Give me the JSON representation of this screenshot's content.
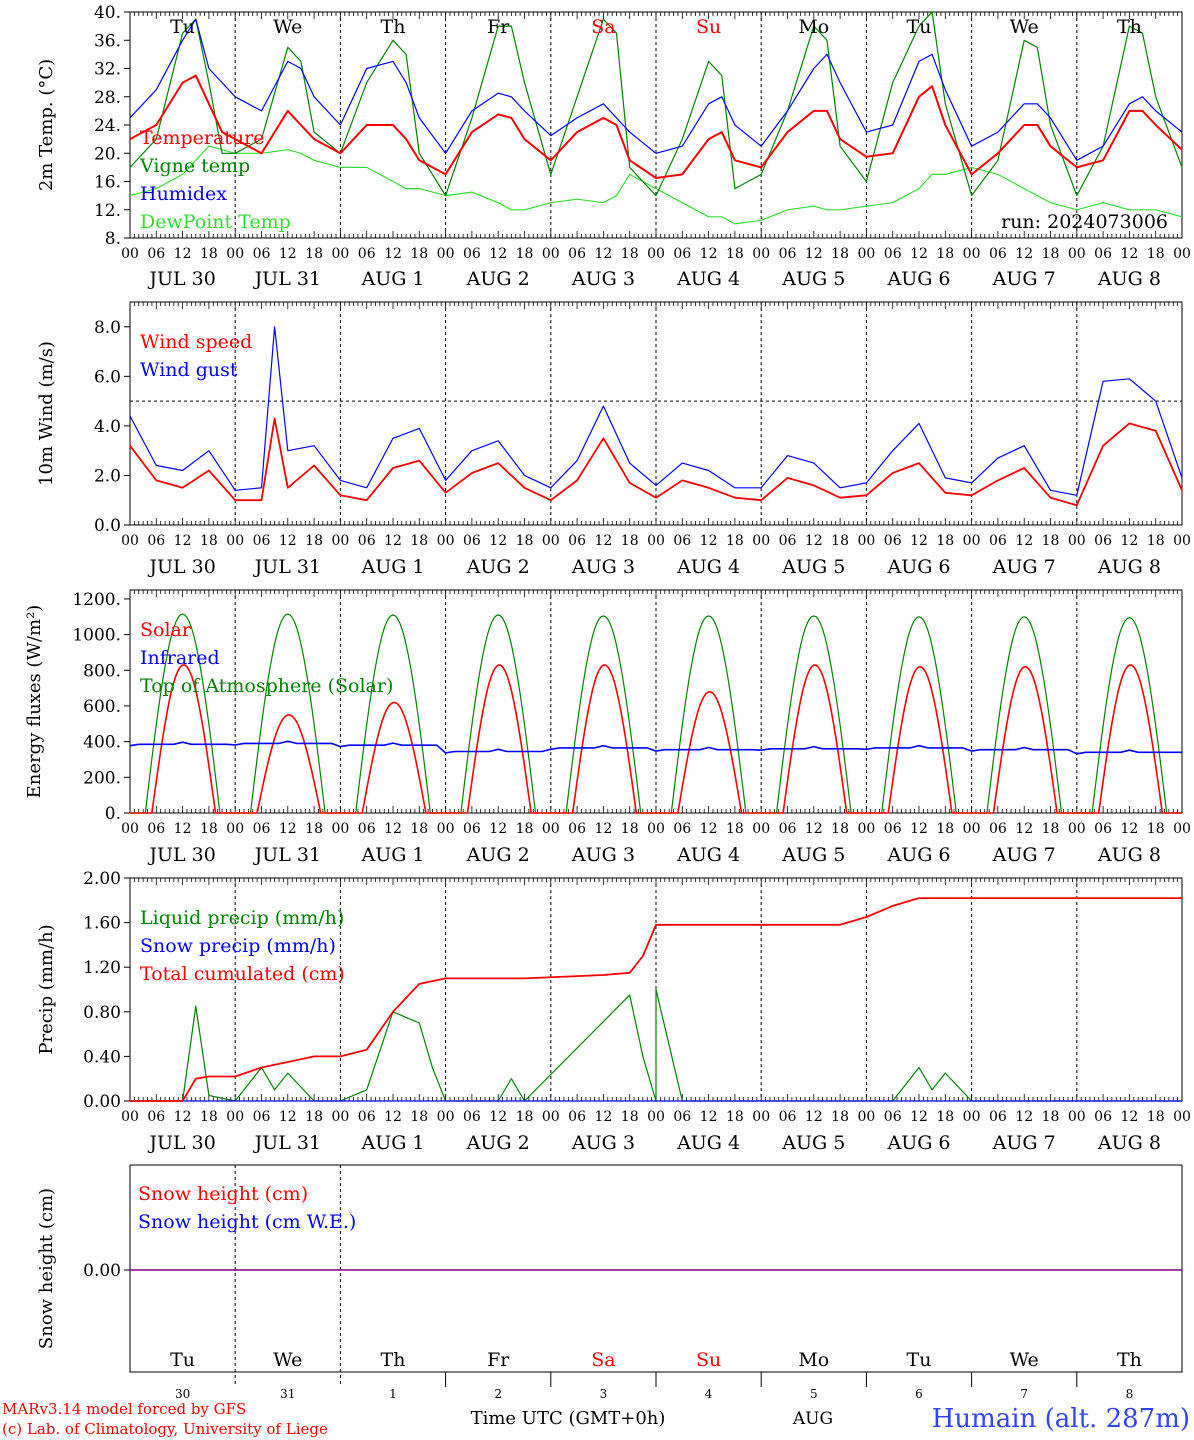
{
  "run_label": "run: 2024073006",
  "footer": {
    "model": "MARv3.14 model forced by GFS",
    "lab": "(c) Lab. of Climatology, University of Liege",
    "time_label": "Time UTC (GMT+0h)",
    "month_label": "AUG",
    "station": "Humain (alt. 287m)"
  },
  "days": {
    "dates": [
      "JUL 30",
      "JUL 31",
      "AUG  1",
      "AUG  2",
      "AUG  3",
      "AUG  4",
      "AUG  5",
      "AUG  6",
      "AUG  7",
      "AUG  8"
    ],
    "weekdays": [
      "Tu",
      "We",
      "Th",
      "Fr",
      "Sa",
      "Su",
      "Mo",
      "Tu",
      "We",
      "Th"
    ],
    "weekday_colors": [
      "#000000",
      "#000000",
      "#000000",
      "#000000",
      "#ff0000",
      "#ff0000",
      "#000000",
      "#000000",
      "#000000",
      "#000000"
    ],
    "day_numbers": [
      "30",
      "31",
      "1",
      "2",
      "3",
      "4",
      "5",
      "6",
      "7",
      "8"
    ],
    "hour_labels": [
      "00",
      "06",
      "12",
      "18"
    ],
    "final_hour_label": "00"
  },
  "colors": {
    "red": "#ff0000",
    "green": "#008000",
    "blue": "#0000ff",
    "lightgreen": "#33dd33",
    "purple": "#800080"
  },
  "chart_data": [
    {
      "type": "line",
      "ylabel": "2m Temp. (°C)",
      "ylim": [
        8,
        40
      ],
      "yticks": [
        "8.",
        "12.",
        "16.",
        "20.",
        "24.",
        "28.",
        "32.",
        "36.",
        "40."
      ],
      "x_unit": "hours since JUL 30 00 UTC",
      "x": [
        0,
        6,
        12,
        15,
        18,
        21,
        24,
        30,
        36,
        39,
        42,
        48,
        54,
        60,
        63,
        66,
        72,
        78,
        84,
        87,
        90,
        96,
        102,
        108,
        111,
        114,
        120,
        126,
        132,
        135,
        138,
        144,
        150,
        156,
        159,
        162,
        168,
        174,
        180,
        183,
        186,
        192,
        198,
        204,
        207,
        210,
        216,
        222,
        228,
        231,
        234,
        240
      ],
      "series": [
        {
          "name": "Temperature",
          "color": "red",
          "values": [
            22,
            24,
            30,
            31,
            27,
            23,
            22,
            20,
            26,
            24,
            22,
            20,
            24,
            24,
            22,
            19,
            17,
            23,
            25.5,
            25,
            22,
            19,
            23,
            25,
            24,
            19,
            16.5,
            17,
            22,
            23,
            19,
            18,
            23,
            26,
            26,
            22,
            19.5,
            20,
            28,
            29.5,
            24,
            17,
            20,
            24,
            24,
            21,
            18,
            19,
            26,
            26,
            24,
            20.5
          ]
        },
        {
          "name": "Vigne temp",
          "color": "green",
          "values": [
            18,
            22,
            37,
            39,
            30,
            20,
            20,
            22,
            35,
            33,
            23,
            20,
            30,
            36,
            34,
            20,
            14,
            25,
            38,
            38,
            30,
            17,
            28,
            39,
            37,
            18,
            14,
            22,
            33,
            31,
            15,
            17,
            26,
            38,
            36,
            21,
            16,
            30,
            38,
            40,
            27,
            14,
            19,
            36,
            35,
            24,
            14,
            21,
            38,
            37,
            28,
            18
          ]
        },
        {
          "name": "Humidex",
          "color": "blue",
          "values": [
            25,
            29,
            36,
            39,
            32,
            30,
            28,
            26,
            33,
            32,
            28,
            24,
            32,
            33,
            30,
            25,
            20,
            26,
            28.5,
            28,
            26,
            22.5,
            25,
            27,
            25,
            23,
            20,
            21,
            27,
            28,
            24,
            21,
            26,
            32,
            34,
            30,
            23,
            24,
            33,
            34,
            29,
            21,
            23,
            27,
            27,
            25,
            19,
            21,
            27,
            28,
            26,
            23
          ]
        },
        {
          "name": "DewPoint Temp",
          "color": "lightgreen",
          "values": [
            14,
            15,
            17,
            19,
            21,
            20.5,
            20,
            20,
            20.5,
            20,
            19,
            18,
            18,
            16,
            15,
            15,
            14,
            14.5,
            13,
            12,
            12,
            13,
            13.5,
            13,
            14,
            17,
            15,
            13,
            11,
            11,
            10,
            10.5,
            12,
            12.5,
            12,
            12,
            12.5,
            13,
            15,
            17,
            17,
            18,
            17,
            15,
            14,
            13,
            12,
            13,
            12,
            12,
            12,
            11
          ]
        }
      ]
    },
    {
      "type": "line",
      "ylabel": "10m Wind (m/s)",
      "ylim": [
        0,
        9
      ],
      "yticks": [
        "0.0",
        "2.0",
        "4.0",
        "6.0",
        "8.0"
      ],
      "reference_line": 5,
      "x_unit": "hours since JUL 30 00 UTC",
      "x": [
        0,
        6,
        12,
        18,
        24,
        30,
        33,
        36,
        42,
        48,
        54,
        60,
        66,
        72,
        78,
        84,
        90,
        96,
        102,
        108,
        114,
        120,
        126,
        132,
        138,
        144,
        150,
        156,
        162,
        168,
        174,
        180,
        186,
        192,
        198,
        204,
        210,
        216,
        222,
        228,
        234,
        240
      ],
      "series": [
        {
          "name": "Wind speed",
          "color": "red",
          "values": [
            3.2,
            1.8,
            1.5,
            2.2,
            1.0,
            1.0,
            4.3,
            1.5,
            2.4,
            1.2,
            1.0,
            2.3,
            2.6,
            1.3,
            2.1,
            2.5,
            1.5,
            1.0,
            1.8,
            3.5,
            1.7,
            1.1,
            1.8,
            1.5,
            1.1,
            1.0,
            1.9,
            1.6,
            1.1,
            1.2,
            2.1,
            2.5,
            1.3,
            1.2,
            1.8,
            2.3,
            1.1,
            0.8,
            3.2,
            4.1,
            3.8,
            1.4
          ]
        },
        {
          "name": "Wind gust",
          "color": "blue",
          "values": [
            4.4,
            2.4,
            2.2,
            3.0,
            1.4,
            1.5,
            8.0,
            3.0,
            3.2,
            1.8,
            1.5,
            3.5,
            3.9,
            1.8,
            3.0,
            3.4,
            2.0,
            1.5,
            2.6,
            4.8,
            2.5,
            1.6,
            2.5,
            2.2,
            1.5,
            1.5,
            2.8,
            2.5,
            1.5,
            1.7,
            3.0,
            4.1,
            1.9,
            1.7,
            2.7,
            3.2,
            1.4,
            1.2,
            5.8,
            5.9,
            5.0,
            1.9
          ]
        }
      ]
    },
    {
      "type": "line",
      "ylabel": "Energy fluxes (W/m²)",
      "ylim": [
        0,
        1250
      ],
      "yticks": [
        "0.",
        "200.",
        "400.",
        "600.",
        "800.",
        "1000.",
        "1200."
      ],
      "x_unit": "hours since JUL 30 00 UTC",
      "series": [
        {
          "name": "Solar",
          "color": "red",
          "daily_peaks": [
            830,
            550,
            620,
            830,
            830,
            680,
            830,
            820,
            820,
            830
          ]
        },
        {
          "name": "Infrared",
          "color": "blue",
          "daily_mean": [
            385,
            390,
            380,
            345,
            365,
            355,
            360,
            365,
            355,
            340
          ]
        },
        {
          "name": "Top of Atmosphere (Solar)",
          "color": "green",
          "daily_peaks": [
            1115,
            1115,
            1110,
            1110,
            1105,
            1105,
            1105,
            1100,
            1100,
            1095
          ]
        }
      ]
    },
    {
      "type": "line",
      "ylabel": "Precip (mm/h)",
      "ylim": [
        0,
        2
      ],
      "yticks": [
        "0.00",
        "0.40",
        "0.80",
        "1.20",
        "1.60",
        "2.00"
      ],
      "x_unit": "hours since JUL 30 00 UTC",
      "series": [
        {
          "name": "Liquid precip (mm/h)",
          "color": "green",
          "x": [
            0,
            12,
            15,
            18,
            24,
            30,
            33,
            36,
            42,
            48,
            54,
            60,
            63,
            66,
            69,
            72,
            84,
            87,
            90,
            120,
            114,
            117,
            120,
            126,
            132,
            174,
            180,
            183,
            186,
            192,
            240
          ],
          "values": [
            0,
            0,
            0.85,
            0.05,
            0,
            0.3,
            0.1,
            0.25,
            0,
            0,
            0.1,
            0.8,
            0.75,
            0.7,
            0.3,
            0,
            0,
            0.2,
            0,
            0,
            0.95,
            0.4,
            1.0,
            0,
            0,
            0,
            0.3,
            0.1,
            0.25,
            0,
            0
          ]
        },
        {
          "name": "Snow precip (mm/h)",
          "color": "blue",
          "x": [
            0,
            240
          ],
          "values": [
            0,
            0
          ]
        },
        {
          "name": "Total cumulated (cm)",
          "color": "red",
          "x": [
            0,
            12,
            15,
            18,
            24,
            30,
            36,
            42,
            48,
            54,
            60,
            66,
            72,
            90,
            108,
            114,
            117,
            120,
            162,
            168,
            174,
            180,
            240
          ],
          "values": [
            0,
            0,
            0.2,
            0.22,
            0.22,
            0.3,
            0.35,
            0.4,
            0.4,
            0.46,
            0.8,
            1.05,
            1.1,
            1.1,
            1.13,
            1.15,
            1.3,
            1.58,
            1.58,
            1.65,
            1.75,
            1.82,
            1.82
          ]
        }
      ]
    },
    {
      "type": "line",
      "ylabel": "Snow height (cm)",
      "yticks": [
        "0.00"
      ],
      "series": [
        {
          "name": "Snow height (cm)",
          "color": "red",
          "values": [
            0,
            0
          ]
        },
        {
          "name": "Snow height (cm W.E.)",
          "color": "blue",
          "values": [
            0,
            0
          ]
        }
      ]
    }
  ]
}
